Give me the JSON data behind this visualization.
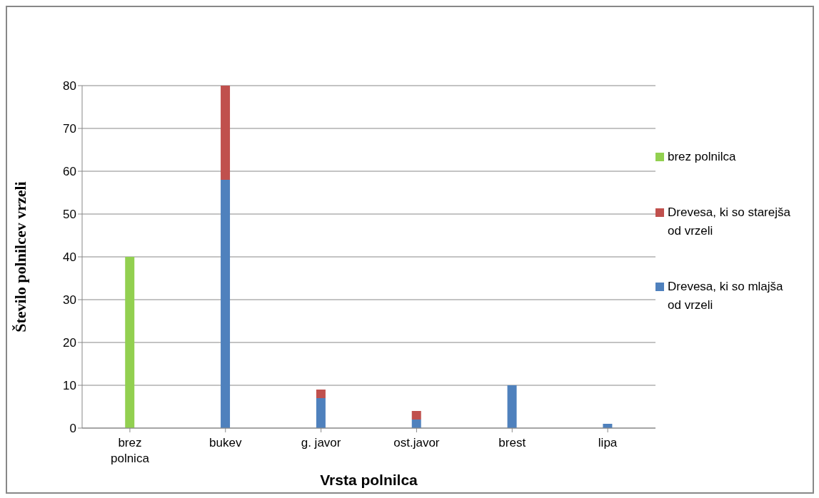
{
  "chart_data": {
    "type": "bar",
    "stacked": true,
    "xlabel": "Vrsta polnilca",
    "ylabel": "Število polnilcev vrzeli",
    "categories": [
      "brez polnica",
      "bukev",
      "g. javor",
      "ost.javor",
      "brest",
      "lipa"
    ],
    "series": [
      {
        "name": "Drevesa, ki so mlajša od vrzeli",
        "color": "#4f81bd",
        "values": [
          null,
          58,
          7,
          2,
          10,
          1
        ]
      },
      {
        "name": "Drevesa, ki so starejša od vrzeli",
        "color": "#c0504d",
        "values": [
          null,
          22,
          2,
          2,
          null,
          null
        ]
      },
      {
        "name": "brez polnilca",
        "color": "#92d050",
        "values": [
          40,
          null,
          null,
          null,
          null,
          null
        ]
      }
    ],
    "ylim": [
      0,
      80
    ],
    "yticks": [
      0,
      10,
      20,
      30,
      40,
      50,
      60,
      70,
      80
    ],
    "grid": "y",
    "legend": "right"
  }
}
